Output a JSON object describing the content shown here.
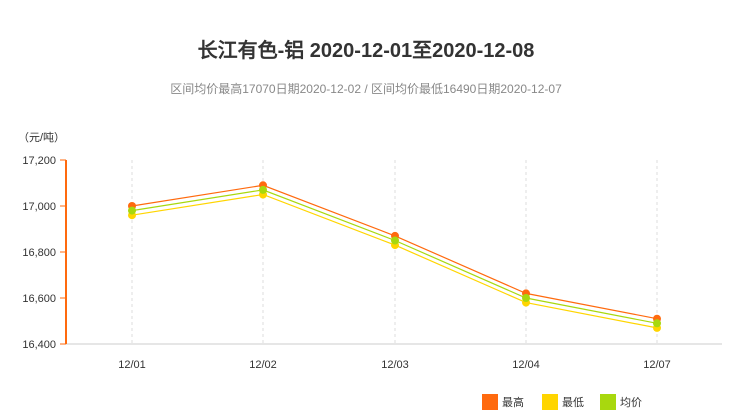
{
  "header": {
    "title": "长江有色-铝 2020-12-01至2020-12-08",
    "subtitle": "区间均价最高17070日期2020-12-02 / 区间均价最低16490日期2020-12-07"
  },
  "chart_data": {
    "type": "line",
    "categories": [
      "12/01",
      "12/02",
      "12/03",
      "12/04",
      "12/07"
    ],
    "series": [
      {
        "name": "最高",
        "values": [
          17000,
          17090,
          16870,
          16620,
          16510
        ],
        "color": "#FF6A0E"
      },
      {
        "name": "最低",
        "values": [
          16960,
          17050,
          16830,
          16580,
          16470
        ],
        "color": "#FFD500"
      },
      {
        "name": "均价",
        "values": [
          16980,
          17070,
          16850,
          16600,
          16490
        ],
        "color": "#A8D80E"
      }
    ],
    "ylabel": "（元/吨）",
    "ylim": [
      16400,
      17200
    ],
    "yticks": [
      "16,400",
      "16,600",
      "16,800",
      "17,000",
      "17,200"
    ],
    "legend_position": "bottom-right",
    "grid": "vertical-dashed",
    "axis_color": "#FF6A0E"
  }
}
